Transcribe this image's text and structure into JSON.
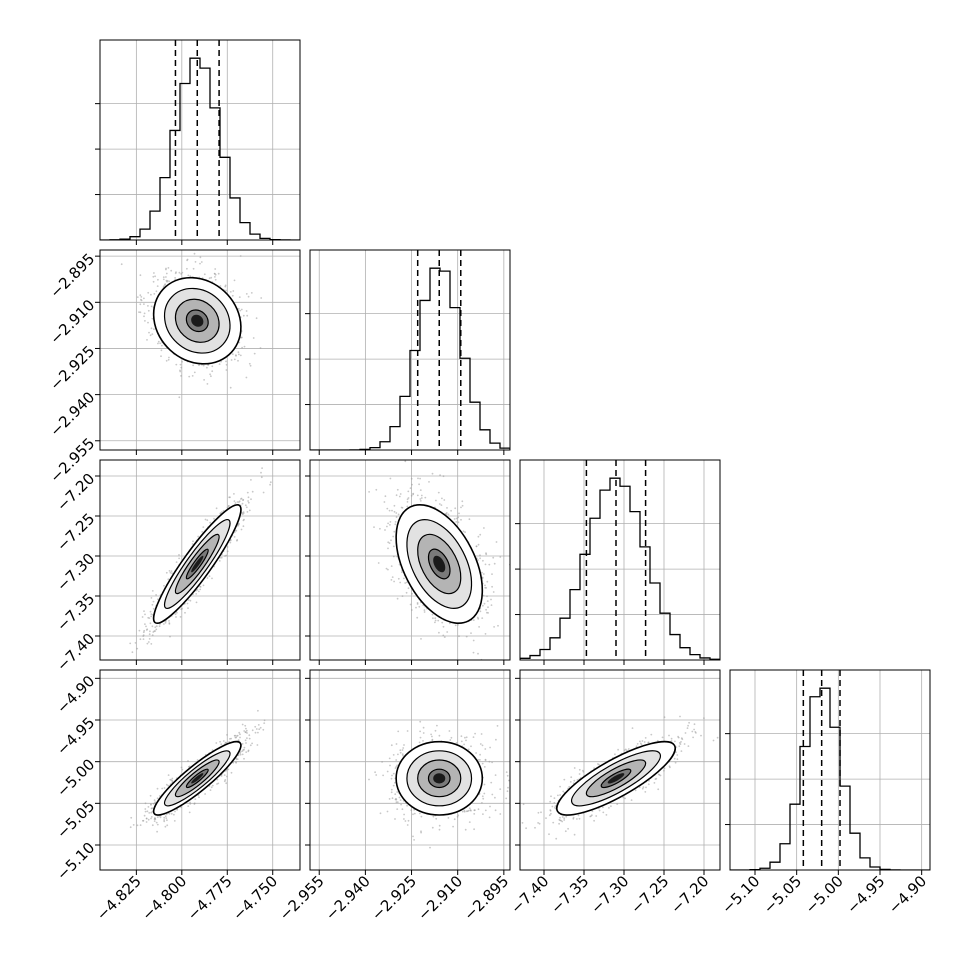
{
  "chart_data": {
    "type": "corner",
    "title": "",
    "parameters": [
      {
        "index": 0,
        "range": [
          -4.845,
          -4.735
        ],
        "ticks": [
          -4.825,
          -4.8,
          -4.775,
          -4.75
        ],
        "tick_labels": [
          "−4.825",
          "−4.800",
          "−4.775",
          "−4.750"
        ],
        "quantiles": [
          -4.8035,
          -4.7915,
          -4.7795
        ],
        "mean": -4.7915,
        "sigma": 0.012
      },
      {
        "index": 1,
        "range": [
          -2.958,
          -2.893
        ],
        "ticks": [
          -2.955,
          -2.94,
          -2.925,
          -2.91,
          -2.895
        ],
        "tick_labels": [
          "−2.955",
          "−2.940",
          "−2.925",
          "−2.910",
          "−2.895"
        ],
        "quantiles": [
          -2.923,
          -2.916,
          -2.909
        ],
        "mean": -2.916,
        "sigma": 0.007
      },
      {
        "index": 2,
        "range": [
          -7.43,
          -7.18
        ],
        "ticks": [
          -7.4,
          -7.35,
          -7.3,
          -7.25,
          -7.2
        ],
        "tick_labels": [
          "−7.40",
          "−7.35",
          "−7.30",
          "−7.25",
          "−7.20"
        ],
        "quantiles": [
          -7.347,
          -7.31,
          -7.273
        ],
        "mean": -7.31,
        "sigma": 0.037
      },
      {
        "index": 3,
        "range": [
          -5.13,
          -4.89
        ],
        "ticks": [
          -5.1,
          -5.05,
          -5.0,
          -4.95,
          -4.9
        ],
        "tick_labels": [
          "−5.10",
          "−5.05",
          "−5.00",
          "−4.95",
          "−4.90"
        ],
        "quantiles": [
          -5.042,
          -5.02,
          -4.998
        ],
        "mean": -5.02,
        "sigma": 0.022
      }
    ],
    "correlations": [
      {
        "row": 1,
        "col": 0,
        "r": -0.15,
        "center": [
          -4.7915,
          -2.916
        ]
      },
      {
        "row": 2,
        "col": 0,
        "r": 0.92,
        "center": [
          -4.7915,
          -7.31
        ]
      },
      {
        "row": 2,
        "col": 1,
        "r": -0.45,
        "center": [
          -2.916,
          -7.31
        ]
      },
      {
        "row": 3,
        "col": 0,
        "r": 0.9,
        "center": [
          -4.7915,
          -5.02
        ]
      },
      {
        "row": 3,
        "col": 1,
        "r": 0.0,
        "center": [
          -2.916,
          -5.02
        ]
      },
      {
        "row": 3,
        "col": 2,
        "r": 0.82,
        "center": [
          -7.31,
          -5.02
        ]
      }
    ],
    "histogram_bins": 20,
    "contour_levels_sigma": [
      0.5,
      1.0,
      1.5,
      2.0
    ],
    "grid": true,
    "legend": "none",
    "xlabel": "",
    "ylabel": ""
  }
}
